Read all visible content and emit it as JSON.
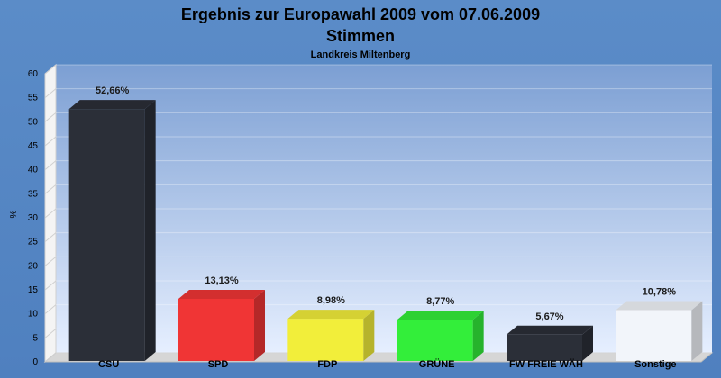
{
  "chart_data": {
    "type": "bar",
    "title": "Ergebnis zur Europawahl 2009 vom 07.06.2009",
    "subtitle": "Stimmen",
    "subsubtitle": "Landkreis Miltenberg",
    "ylabel": "%",
    "ylim": [
      0,
      60
    ],
    "yticks": [
      "0",
      "5",
      "10",
      "15",
      "20",
      "25",
      "30",
      "35",
      "40",
      "45",
      "50",
      "55",
      "60"
    ],
    "grid": true,
    "categories": [
      "CSU",
      "SPD",
      "FDP",
      "GRÜNE",
      "FW FREIE WÄH",
      "Sonstige"
    ],
    "values": [
      52.66,
      13.13,
      8.98,
      8.77,
      5.67,
      10.78
    ],
    "labels": [
      "52,66%",
      "13,13%",
      "8,98%",
      "8,77%",
      "5,67%",
      "10,78%"
    ],
    "colors": [
      "#2b2f38",
      "#f03535",
      "#f2ee3a",
      "#33ee3a",
      "#2b2f38",
      "#f2f5fa"
    ]
  }
}
